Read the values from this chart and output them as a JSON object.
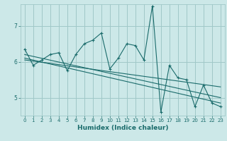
{
  "xlabel": "Humidex (Indice chaleur)",
  "ylabel": "",
  "bg_color": "#cce8e8",
  "grid_color": "#a0c8c8",
  "line_color": "#1a6b6b",
  "xlim": [
    -0.5,
    23.5
  ],
  "ylim": [
    4.5,
    7.6
  ],
  "yticks": [
    5,
    6,
    7
  ],
  "xticks": [
    0,
    1,
    2,
    3,
    4,
    5,
    6,
    7,
    8,
    9,
    10,
    11,
    12,
    13,
    14,
    15,
    16,
    17,
    18,
    19,
    20,
    21,
    22,
    23
  ],
  "scatter_x": [
    0,
    1,
    2,
    3,
    4,
    5,
    6,
    7,
    8,
    9,
    10,
    11,
    12,
    13,
    14,
    15,
    16,
    17,
    18,
    19,
    20,
    21,
    22,
    23
  ],
  "scatter_y": [
    6.35,
    5.9,
    6.05,
    6.2,
    6.25,
    5.75,
    6.2,
    6.5,
    6.6,
    6.8,
    5.8,
    6.1,
    6.5,
    6.45,
    6.05,
    7.55,
    4.6,
    5.9,
    5.55,
    5.5,
    4.75,
    5.35,
    4.85,
    4.75
  ],
  "trend1_x": [
    0,
    23
  ],
  "trend1_y": [
    6.2,
    5.0
  ],
  "trend2_x": [
    0,
    23
  ],
  "trend2_y": [
    6.1,
    4.85
  ],
  "trend3_x": [
    0,
    23
  ],
  "trend3_y": [
    6.05,
    5.3
  ]
}
